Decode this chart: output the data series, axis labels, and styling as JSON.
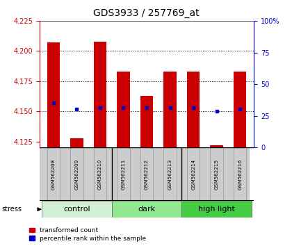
{
  "title": "GDS3933 / 257769_at",
  "samples": [
    "GSM562208",
    "GSM562209",
    "GSM562210",
    "GSM562211",
    "GSM562212",
    "GSM562213",
    "GSM562214",
    "GSM562215",
    "GSM562216"
  ],
  "red_values": [
    4.207,
    4.128,
    4.208,
    4.183,
    4.163,
    4.183,
    4.183,
    4.122,
    4.183
  ],
  "blue_values": [
    4.157,
    4.152,
    4.153,
    4.153,
    4.153,
    4.153,
    4.153,
    4.15,
    4.152
  ],
  "ylim_left": [
    4.12,
    4.225
  ],
  "ylim_right": [
    0,
    100
  ],
  "yticks_left": [
    4.125,
    4.15,
    4.175,
    4.2,
    4.225
  ],
  "yticks_right": [
    0,
    25,
    50,
    75,
    100
  ],
  "groups": [
    {
      "label": "control",
      "start": 0,
      "end": 3,
      "color": "#d4f0d4"
    },
    {
      "label": "dark",
      "start": 3,
      "end": 6,
      "color": "#90e890"
    },
    {
      "label": "high light",
      "start": 6,
      "end": 9,
      "color": "#44cc44"
    }
  ],
  "bar_bottom": 4.12,
  "bar_color": "#cc0000",
  "blue_color": "#0000cc",
  "tick_color_left": "#cc0000",
  "tick_color_right": "#0000cc",
  "bar_width": 0.55,
  "legend_red": "transformed count",
  "legend_blue": "percentile rank within the sample",
  "grid_yvals": [
    4.15,
    4.175,
    4.2
  ]
}
